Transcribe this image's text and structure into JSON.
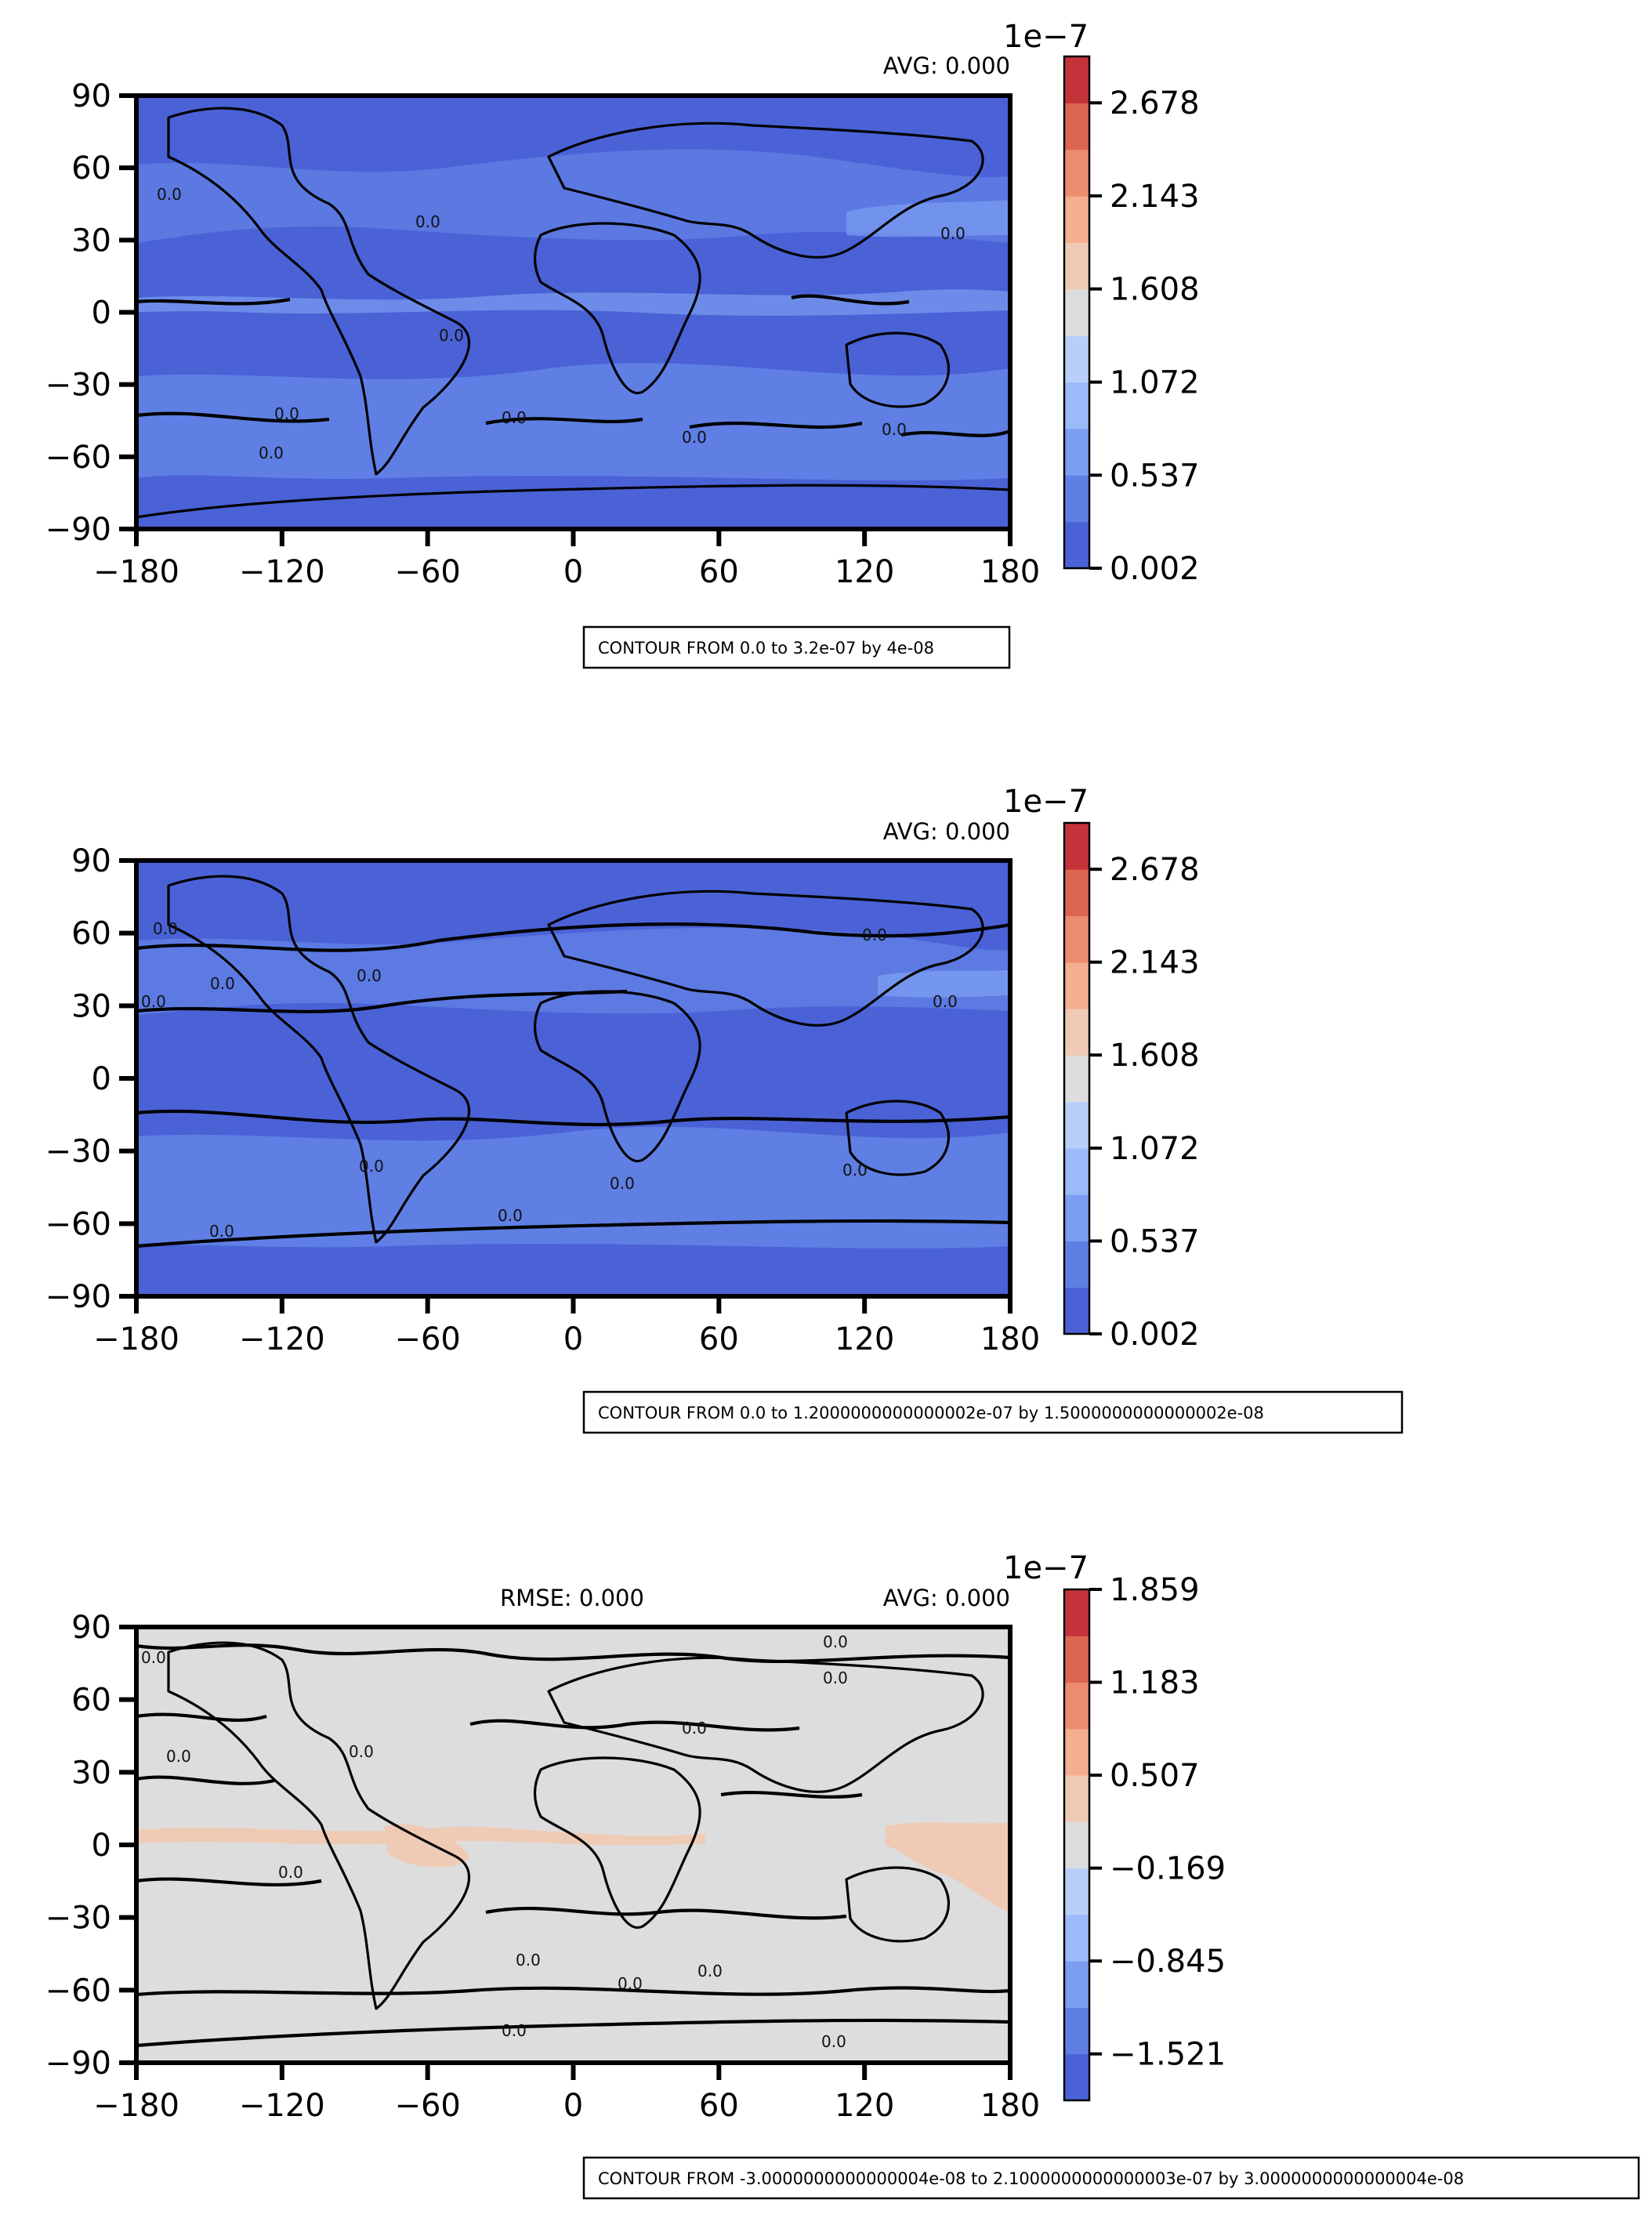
{
  "chart_data": [
    {
      "type": "heatmap",
      "title": "",
      "stats": {
        "left": "",
        "right": "AVG: 0.000"
      },
      "xlim": [
        -180,
        180
      ],
      "ylim": [
        -90,
        90
      ],
      "xticks": [
        "−180",
        "−120",
        "−60",
        "0",
        "60",
        "120",
        "180"
      ],
      "yticks": [
        "90",
        "60",
        "30",
        "0",
        "−30",
        "−60",
        "−90"
      ],
      "field": "mostly low background with moderate bands along storm tracks and ITCZ",
      "contour_labels": [
        "0.0",
        "0.0",
        "0.0",
        "0.0",
        "0.0",
        "0.0",
        "0.0",
        "0.0",
        "0.0"
      ],
      "colorbar": {
        "exponent": "1e−7",
        "tick_labels": [
          "0.002",
          "0.537",
          "1.072",
          "1.608",
          "2.143",
          "2.678"
        ],
        "ticks": [
          0.002,
          0.537,
          1.072,
          1.608,
          2.143,
          2.678
        ],
        "range": [
          0.002,
          2.945
        ],
        "levels": 11
      },
      "contour_info": "CONTOUR FROM 0.0 to 3.2e-07 by 4e-08"
    },
    {
      "type": "heatmap",
      "title": "",
      "stats": {
        "left": "",
        "right": "AVG: 0.000"
      },
      "xlim": [
        -180,
        180
      ],
      "ylim": [
        -90,
        90
      ],
      "xticks": [
        "−180",
        "−120",
        "−60",
        "0",
        "60",
        "120",
        "180"
      ],
      "yticks": [
        "90",
        "60",
        "30",
        "0",
        "−30",
        "−60",
        "−90"
      ],
      "contour_labels": [
        "0.0",
        "0.0",
        "0.0",
        "0.0",
        "0.0",
        "0.0",
        "0.0",
        "0.0",
        "0.0",
        "0.0",
        "0.0"
      ],
      "colorbar": {
        "exponent": "1e−7",
        "tick_labels": [
          "0.002",
          "0.537",
          "1.072",
          "1.608",
          "2.143",
          "2.678"
        ],
        "ticks": [
          0.002,
          0.537,
          1.072,
          1.608,
          2.143,
          2.678
        ],
        "range": [
          0.002,
          2.945
        ],
        "levels": 11
      },
      "contour_info": "CONTOUR FROM 0.0 to 1.2000000000000002e-07 by 1.5000000000000002e-08"
    },
    {
      "type": "heatmap",
      "title": "",
      "stats": {
        "left": "RMSE: 0.000",
        "right": "AVG: 0.000"
      },
      "xlim": [
        -180,
        180
      ],
      "ylim": [
        -90,
        90
      ],
      "xticks": [
        "−180",
        "−120",
        "−60",
        "0",
        "60",
        "120",
        "180"
      ],
      "yticks": [
        "90",
        "60",
        "30",
        "0",
        "−30",
        "−60",
        "−90"
      ],
      "contour_labels": [
        "0.0",
        "0.0",
        "0.0",
        "0.0",
        "0.0",
        "0.0",
        "0.0",
        "0.0",
        "0.0",
        "0.0",
        "0.0",
        "0.0"
      ],
      "colorbar": {
        "exponent": "1e−7",
        "tick_labels": [
          "−1.521",
          "−0.845",
          "−0.169",
          "0.507",
          "1.183",
          "1.859"
        ],
        "ticks": [
          -1.521,
          -0.845,
          -0.169,
          0.507,
          1.183,
          1.859
        ],
        "range": [
          -1.859,
          1.859
        ],
        "levels": 11
      },
      "contour_info": "CONTOUR FROM -3.0000000000000004e-08 to 2.1000000000000003e-07 by 3.0000000000000004e-08"
    }
  ],
  "colors": {
    "cmap": [
      "#4a62d6",
      "#5f7fe4",
      "#7c9ef2",
      "#9bbafa",
      "#b9cffb",
      "#dddddd",
      "#efcbb6",
      "#f4ae90",
      "#ed8c6f",
      "#dc6650",
      "#c4333a"
    ],
    "background_low": "#4a62d6",
    "band_mid": "#5f7fe4",
    "band_high": "#7c9ef2",
    "diff_neutral": "#dddddd",
    "diff_warm": "#efcbb6"
  }
}
